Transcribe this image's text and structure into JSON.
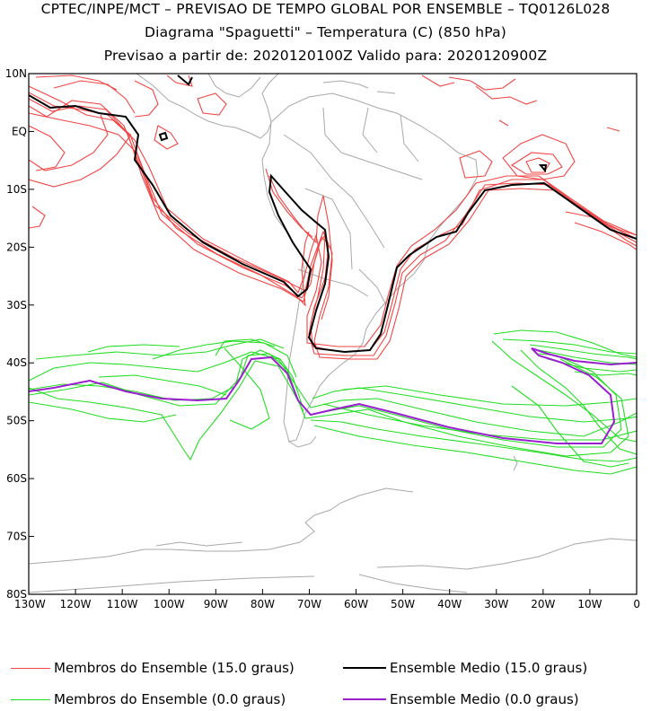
{
  "header": {
    "line1": "CPTEC/INPE/MCT – PREVISAO DE TEMPO GLOBAL POR ENSEMBLE – TQ0126L028",
    "line2": "Diagrama \"Spaguetti\" – Temperatura (C) (850 hPa)",
    "line3": "Previsao a partir de: 2020120100Z  Valido para: 2020120900Z"
  },
  "map": {
    "lat_labels": [
      "10N",
      "EQ",
      "10S",
      "20S",
      "30S",
      "40S",
      "50S",
      "60S",
      "70S",
      "80S"
    ],
    "lat_values": [
      10,
      0,
      -10,
      -20,
      -30,
      -40,
      -50,
      -60,
      -70,
      -80
    ],
    "lon_labels": [
      "130W",
      "120W",
      "110W",
      "100W",
      "90W",
      "80W",
      "70W",
      "60W",
      "50W",
      "40W",
      "30W",
      "20W",
      "10W",
      "0"
    ],
    "lon_values": [
      -130,
      -120,
      -110,
      -100,
      -90,
      -80,
      -70,
      -60,
      -50,
      -40,
      -30,
      -20,
      -10,
      0
    ],
    "lon_range": [
      -130,
      0
    ],
    "lat_range": [
      -80,
      10
    ],
    "colors": {
      "members_15": "#f04545",
      "mean_15": "#000000",
      "members_0": "#22dd22",
      "mean_0": "#9a1fcf",
      "coast": "#a8a8a8"
    }
  },
  "legend": {
    "members_15_label": "Membros do Ensemble (15.0 graus)",
    "mean_15_label": "Ensemble Medio (15.0 graus)",
    "members_0_label": "Membros do Ensemble (0.0 graus)",
    "mean_0_label": "Ensemble Medio (0.0 graus)"
  }
}
